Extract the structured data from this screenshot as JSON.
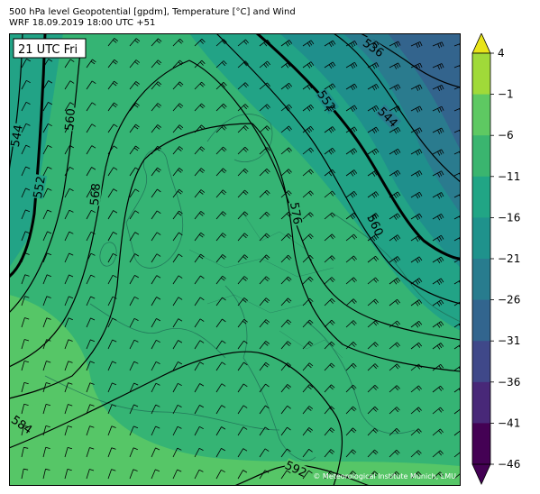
{
  "header": {
    "title_line1": "500 hPa level Geopotential [gpdm], Temperature [°C] and Wind",
    "title_line2": "WRF 18.09.2019 18:00 UTC +51"
  },
  "map": {
    "time_label": "21 UTC Fri",
    "credit": "© Meteorological Institute Munich, LMU",
    "contour_labels": [
      "536",
      "544",
      "552",
      "560",
      "568",
      "576",
      "584",
      "592"
    ]
  },
  "colorbar": {
    "ticks": [
      "4",
      "−1",
      "−6",
      "−11",
      "−16",
      "−21",
      "−26",
      "−31",
      "−36",
      "−41",
      "−46"
    ],
    "colors": [
      "#e8e419",
      "#a0da39",
      "#5ec962",
      "#3ab56f",
      "#21a585",
      "#1f928c",
      "#287c8e",
      "#32658e",
      "#3f4889",
      "#482878",
      "#440154"
    ]
  }
}
